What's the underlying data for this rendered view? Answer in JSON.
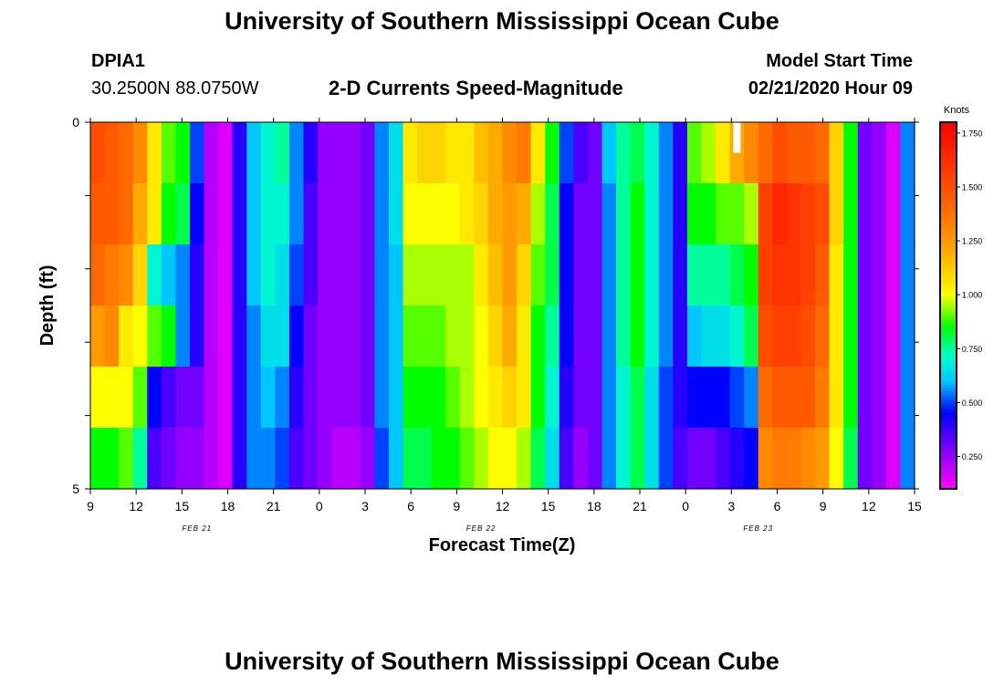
{
  "header": {
    "title": "University of Southern Mississippi Ocean Cube",
    "station": "DPIA1",
    "coords": "30.2500N 88.0750W",
    "subtitle": "2-D Currents Speed-Magnitude",
    "model_label": "Model Start Time",
    "model_time": "02/21/2020 Hour 09"
  },
  "footer": {
    "title": "University of Southern Mississippi Ocean Cube"
  },
  "chart_data": {
    "type": "heatmap",
    "title": "2-D Currents Speed-Magnitude",
    "xlabel": "Forecast Time(Z)",
    "ylabel": "Depth (ft)",
    "x_tick_labels": [
      "9",
      "12",
      "15",
      "18",
      "21",
      "0",
      "3",
      "6",
      "9",
      "12",
      "15",
      "18",
      "21",
      "0",
      "3",
      "6",
      "9",
      "12",
      "15"
    ],
    "date_labels": [
      {
        "label": "FEB 21",
        "hour_index": 7
      },
      {
        "label": "FEB 22",
        "hour_index": 27
      },
      {
        "label": "FEB 23",
        "hour_index": 46.5
      }
    ],
    "y_tick_labels": [
      "0",
      "5"
    ],
    "ylim": [
      0,
      5
    ],
    "colorbar": {
      "label": "Knots",
      "ticks": [
        "1.750",
        "1.500",
        "1.250",
        "1.000",
        "0.750",
        "0.500",
        "0.250"
      ],
      "min": 0.1,
      "max": 1.8
    },
    "hours_start": "02/21/2020 09Z",
    "hour_step": 1,
    "missing_cells": [
      {
        "depth_index": 0,
        "hour_index": 45
      }
    ],
    "speed_knots": [
      [
        1.5,
        1.45,
        1.4,
        1.3,
        1.05,
        0.9,
        0.85,
        0.5,
        0.2,
        0.15,
        0.4,
        0.6,
        0.7,
        0.75,
        0.55,
        0.4,
        0.25,
        0.25,
        0.25,
        0.3,
        0.55,
        0.65,
        1.05,
        1.1,
        1.1,
        1.05,
        1.05,
        1.15,
        1.2,
        1.3,
        1.35,
        1.05,
        0.85,
        0.5,
        0.35,
        0.3,
        0.6,
        0.75,
        0.8,
        0.7,
        0.55,
        0.4,
        0.9,
        0.95,
        1.05,
        1.2,
        1.3,
        1.4,
        1.5,
        1.45,
        1.45,
        1.4,
        1.1,
        0.85,
        0.3,
        0.25,
        0.15,
        0.55
      ],
      [
        1.45,
        1.45,
        1.4,
        1.2,
        1.05,
        0.85,
        0.8,
        0.45,
        0.2,
        0.15,
        0.4,
        0.6,
        0.7,
        0.7,
        0.55,
        0.35,
        0.25,
        0.25,
        0.25,
        0.3,
        0.55,
        0.65,
        1.0,
        1.0,
        1.0,
        1.0,
        1.05,
        1.1,
        1.2,
        1.25,
        1.2,
        0.95,
        0.8,
        0.45,
        0.3,
        0.3,
        0.55,
        0.75,
        0.85,
        0.7,
        0.55,
        0.4,
        0.85,
        0.85,
        0.9,
        0.9,
        0.95,
        1.55,
        1.65,
        1.6,
        1.55,
        1.5,
        1.1,
        0.85,
        0.3,
        0.25,
        0.15,
        0.55
      ],
      [
        1.4,
        1.35,
        1.3,
        1.1,
        0.7,
        0.6,
        0.55,
        0.4,
        0.2,
        0.15,
        0.4,
        0.6,
        0.7,
        0.65,
        0.5,
        0.35,
        0.25,
        0.25,
        0.25,
        0.3,
        0.55,
        0.6,
        0.95,
        0.95,
        0.95,
        0.95,
        0.95,
        1.05,
        1.15,
        1.25,
        1.1,
        0.9,
        0.8,
        0.45,
        0.3,
        0.3,
        0.55,
        0.75,
        0.85,
        0.7,
        0.55,
        0.4,
        0.75,
        0.75,
        0.75,
        0.8,
        0.85,
        1.55,
        1.6,
        1.6,
        1.55,
        1.45,
        1.05,
        0.85,
        0.3,
        0.25,
        0.15,
        0.55
      ],
      [
        1.25,
        1.3,
        1.05,
        1.0,
        0.9,
        0.85,
        0.55,
        0.4,
        0.2,
        0.15,
        0.4,
        0.55,
        0.65,
        0.65,
        0.45,
        0.3,
        0.25,
        0.25,
        0.25,
        0.3,
        0.55,
        0.6,
        0.9,
        0.9,
        0.9,
        0.95,
        0.95,
        1.0,
        1.1,
        1.2,
        1.05,
        0.85,
        0.75,
        0.45,
        0.3,
        0.3,
        0.55,
        0.75,
        0.85,
        0.7,
        0.55,
        0.4,
        0.6,
        0.65,
        0.65,
        0.7,
        0.8,
        1.5,
        1.55,
        1.55,
        1.5,
        1.4,
        1.05,
        0.85,
        0.3,
        0.25,
        0.15,
        0.55
      ],
      [
        1.0,
        1.0,
        1.0,
        0.9,
        0.45,
        0.35,
        0.3,
        0.3,
        0.2,
        0.15,
        0.4,
        0.55,
        0.6,
        0.55,
        0.4,
        0.3,
        0.25,
        0.25,
        0.25,
        0.3,
        0.55,
        0.6,
        0.85,
        0.85,
        0.85,
        0.9,
        0.95,
        1.0,
        1.05,
        1.1,
        1.05,
        0.85,
        0.7,
        0.4,
        0.3,
        0.3,
        0.55,
        0.7,
        0.8,
        0.65,
        0.5,
        0.4,
        0.45,
        0.45,
        0.45,
        0.5,
        0.55,
        1.4,
        1.45,
        1.45,
        1.45,
        1.35,
        1.05,
        0.85,
        0.3,
        0.25,
        0.15,
        0.55
      ],
      [
        0.85,
        0.85,
        0.9,
        0.75,
        0.35,
        0.3,
        0.25,
        0.25,
        0.2,
        0.15,
        0.4,
        0.55,
        0.55,
        0.5,
        0.35,
        0.3,
        0.25,
        0.2,
        0.2,
        0.25,
        0.5,
        0.6,
        0.8,
        0.8,
        0.85,
        0.85,
        0.9,
        0.95,
        1.0,
        1.0,
        0.95,
        0.8,
        0.65,
        0.35,
        0.25,
        0.3,
        0.55,
        0.7,
        0.8,
        0.65,
        0.5,
        0.35,
        0.3,
        0.3,
        0.35,
        0.4,
        0.45,
        1.3,
        1.35,
        1.35,
        1.3,
        1.25,
        1.0,
        0.8,
        0.3,
        0.25,
        0.15,
        0.55
      ]
    ]
  }
}
